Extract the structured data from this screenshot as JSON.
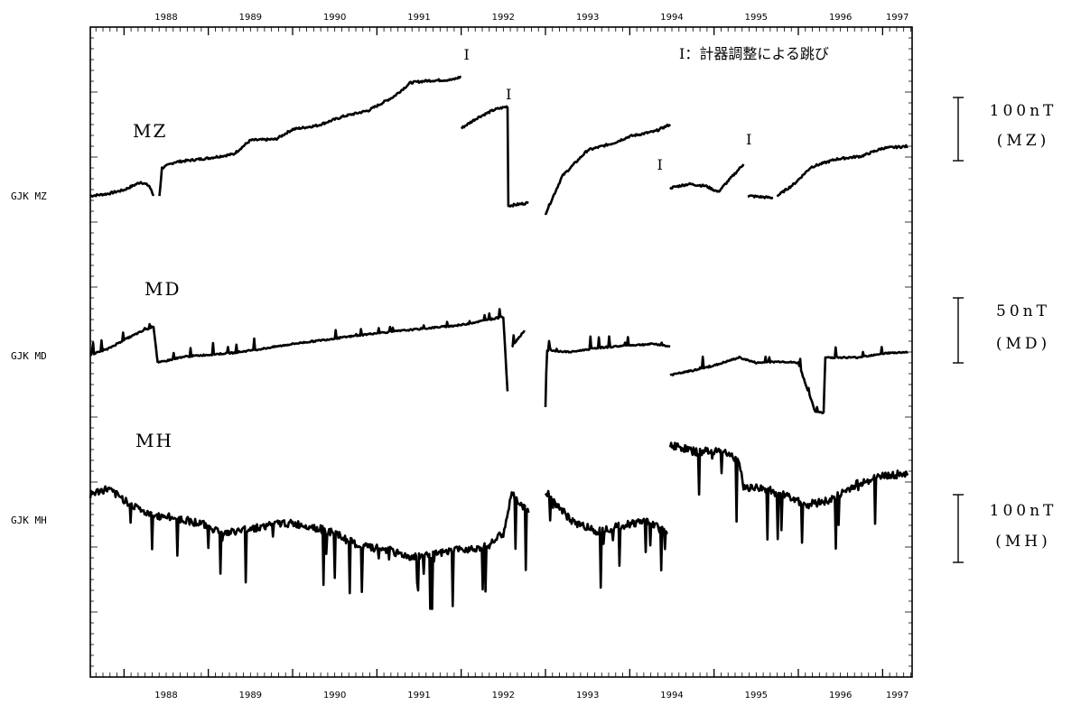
{
  "chart_data": {
    "type": "line",
    "years": [
      "1988",
      "1989",
      "1990",
      "1991",
      "1992",
      "1993",
      "1994",
      "1995",
      "1996",
      "1997"
    ],
    "x_range": [
      1987.6,
      1997.35
    ],
    "note": "I：計器調整による跳び",
    "jump_marker": "I",
    "jumps": [
      {
        "year": 1992.0,
        "series": "MZ"
      },
      {
        "year": 1992.5,
        "series": "MZ"
      },
      {
        "year": 1994.4,
        "series": "MZ"
      },
      {
        "year": 1995.35,
        "series": "MZ"
      }
    ],
    "series": [
      {
        "name": "MZ",
        "row_label": "GJK MZ",
        "scale_value": "100nT",
        "scale_unit": "(MZ)",
        "unit": "nT",
        "segments": [
          [
            [
              1987.6,
              0
            ],
            [
              1987.8,
              2
            ],
            [
              1988.0,
              6
            ],
            [
              1988.2,
              14
            ],
            [
              1988.3,
              10
            ],
            [
              1988.35,
              0
            ]
          ],
          [
            [
              1988.42,
              0
            ],
            [
              1988.45,
              28
            ],
            [
              1988.6,
              34
            ],
            [
              1988.8,
              36
            ],
            [
              1989.0,
              38
            ],
            [
              1989.3,
              42
            ],
            [
              1989.5,
              56
            ],
            [
              1989.8,
              57
            ],
            [
              1990.0,
              67
            ],
            [
              1990.3,
              71
            ],
            [
              1990.6,
              80
            ],
            [
              1990.9,
              86
            ],
            [
              1991.2,
              100
            ],
            [
              1991.4,
              114
            ],
            [
              1991.6,
              116
            ],
            [
              1991.9,
              117
            ],
            [
              1992.0,
              120
            ]
          ],
          [
            [
              1992.0,
              68
            ],
            [
              1992.2,
              79
            ],
            [
              1992.4,
              87
            ],
            [
              1992.55,
              90
            ],
            [
              1992.56,
              -10
            ],
            [
              1992.8,
              -7
            ]
          ],
          [
            [
              1993.0,
              -18
            ],
            [
              1993.2,
              20
            ],
            [
              1993.5,
              46
            ],
            [
              1993.8,
              53
            ],
            [
              1994.0,
              60
            ],
            [
              1994.3,
              65
            ],
            [
              1994.48,
              72
            ]
          ],
          [
            [
              1994.48,
              8
            ],
            [
              1994.7,
              12
            ],
            [
              1994.9,
              10
            ],
            [
              1995.05,
              4
            ],
            [
              1995.2,
              18
            ],
            [
              1995.35,
              32
            ]
          ],
          [
            [
              1995.4,
              0
            ],
            [
              1995.7,
              -2
            ]
          ],
          [
            [
              1995.75,
              0
            ],
            [
              1995.95,
              12
            ],
            [
              1996.15,
              29
            ],
            [
              1996.45,
              37
            ],
            [
              1996.75,
              40
            ],
            [
              1997.0,
              48
            ],
            [
              1997.3,
              50
            ]
          ]
        ]
      },
      {
        "name": "MD",
        "row_label": "GJK MD",
        "scale_value": "50nT",
        "scale_unit": "(MD)",
        "unit": "nT",
        "segments": [
          [
            [
              1987.6,
              0
            ],
            [
              1987.8,
              8
            ],
            [
              1988.0,
              22
            ],
            [
              1988.2,
              34
            ],
            [
              1988.35,
              42
            ],
            [
              1988.4,
              -12
            ]
          ],
          [
            [
              1988.4,
              -12
            ],
            [
              1988.7,
              -3
            ],
            [
              1989.0,
              0
            ],
            [
              1989.3,
              3
            ],
            [
              1989.6,
              8
            ],
            [
              1990.0,
              16
            ],
            [
              1990.5,
              24
            ],
            [
              1991.0,
              32
            ],
            [
              1991.5,
              38
            ],
            [
              1992.0,
              44
            ],
            [
              1992.5,
              56
            ],
            [
              1992.55,
              -54
            ]
          ],
          [
            [
              1992.6,
              12
            ],
            [
              1992.75,
              36
            ]
          ],
          [
            [
              1993.0,
              -78
            ],
            [
              1993.02,
              6
            ],
            [
              1993.3,
              4
            ],
            [
              1993.6,
              10
            ],
            [
              1994.0,
              14
            ],
            [
              1994.3,
              16
            ],
            [
              1994.48,
              12
            ]
          ],
          [
            [
              1994.48,
              -30
            ],
            [
              1994.8,
              -22
            ],
            [
              1995.0,
              -16
            ],
            [
              1995.3,
              -4
            ],
            [
              1995.5,
              -12
            ],
            [
              1995.8,
              -10
            ],
            [
              1996.0,
              -12
            ],
            [
              1996.2,
              -84
            ],
            [
              1996.3,
              -86
            ],
            [
              1996.32,
              -4
            ],
            [
              1996.7,
              -4
            ],
            [
              1997.0,
              2
            ],
            [
              1997.3,
              4
            ]
          ]
        ]
      },
      {
        "name": "MH",
        "row_label": "GJK MH",
        "scale_value": "100nT",
        "scale_unit": "(MH)",
        "unit": "nT",
        "segments": [
          [
            [
              1987.6,
              12
            ],
            [
              1987.8,
              16
            ],
            [
              1988.0,
              8
            ],
            [
              1988.3,
              -4
            ],
            [
              1988.6,
              -6
            ],
            [
              1988.9,
              -10
            ],
            [
              1989.2,
              -18
            ],
            [
              1989.5,
              -14
            ],
            [
              1989.9,
              -10
            ],
            [
              1990.2,
              -12
            ],
            [
              1990.5,
              -18
            ],
            [
              1990.8,
              -28
            ],
            [
              1991.1,
              -30
            ],
            [
              1991.4,
              -36
            ],
            [
              1991.7,
              -34
            ],
            [
              1992.0,
              -30
            ],
            [
              1992.3,
              -28
            ],
            [
              1992.5,
              -18
            ],
            [
              1992.6,
              12
            ],
            [
              1992.8,
              -2
            ]
          ],
          [
            [
              1993.0,
              14
            ],
            [
              1993.3,
              -8
            ],
            [
              1993.6,
              -16
            ],
            [
              1993.9,
              -12
            ],
            [
              1994.2,
              -8
            ],
            [
              1994.45,
              -18
            ]
          ],
          [
            [
              1994.48,
              50
            ],
            [
              1994.8,
              44
            ],
            [
              1995.1,
              46
            ],
            [
              1995.3,
              36
            ],
            [
              1995.35,
              18
            ],
            [
              1995.6,
              16
            ],
            [
              1995.9,
              10
            ],
            [
              1996.1,
              4
            ],
            [
              1996.4,
              8
            ],
            [
              1996.7,
              20
            ],
            [
              1997.0,
              26
            ],
            [
              1997.3,
              28
            ]
          ]
        ]
      }
    ]
  }
}
